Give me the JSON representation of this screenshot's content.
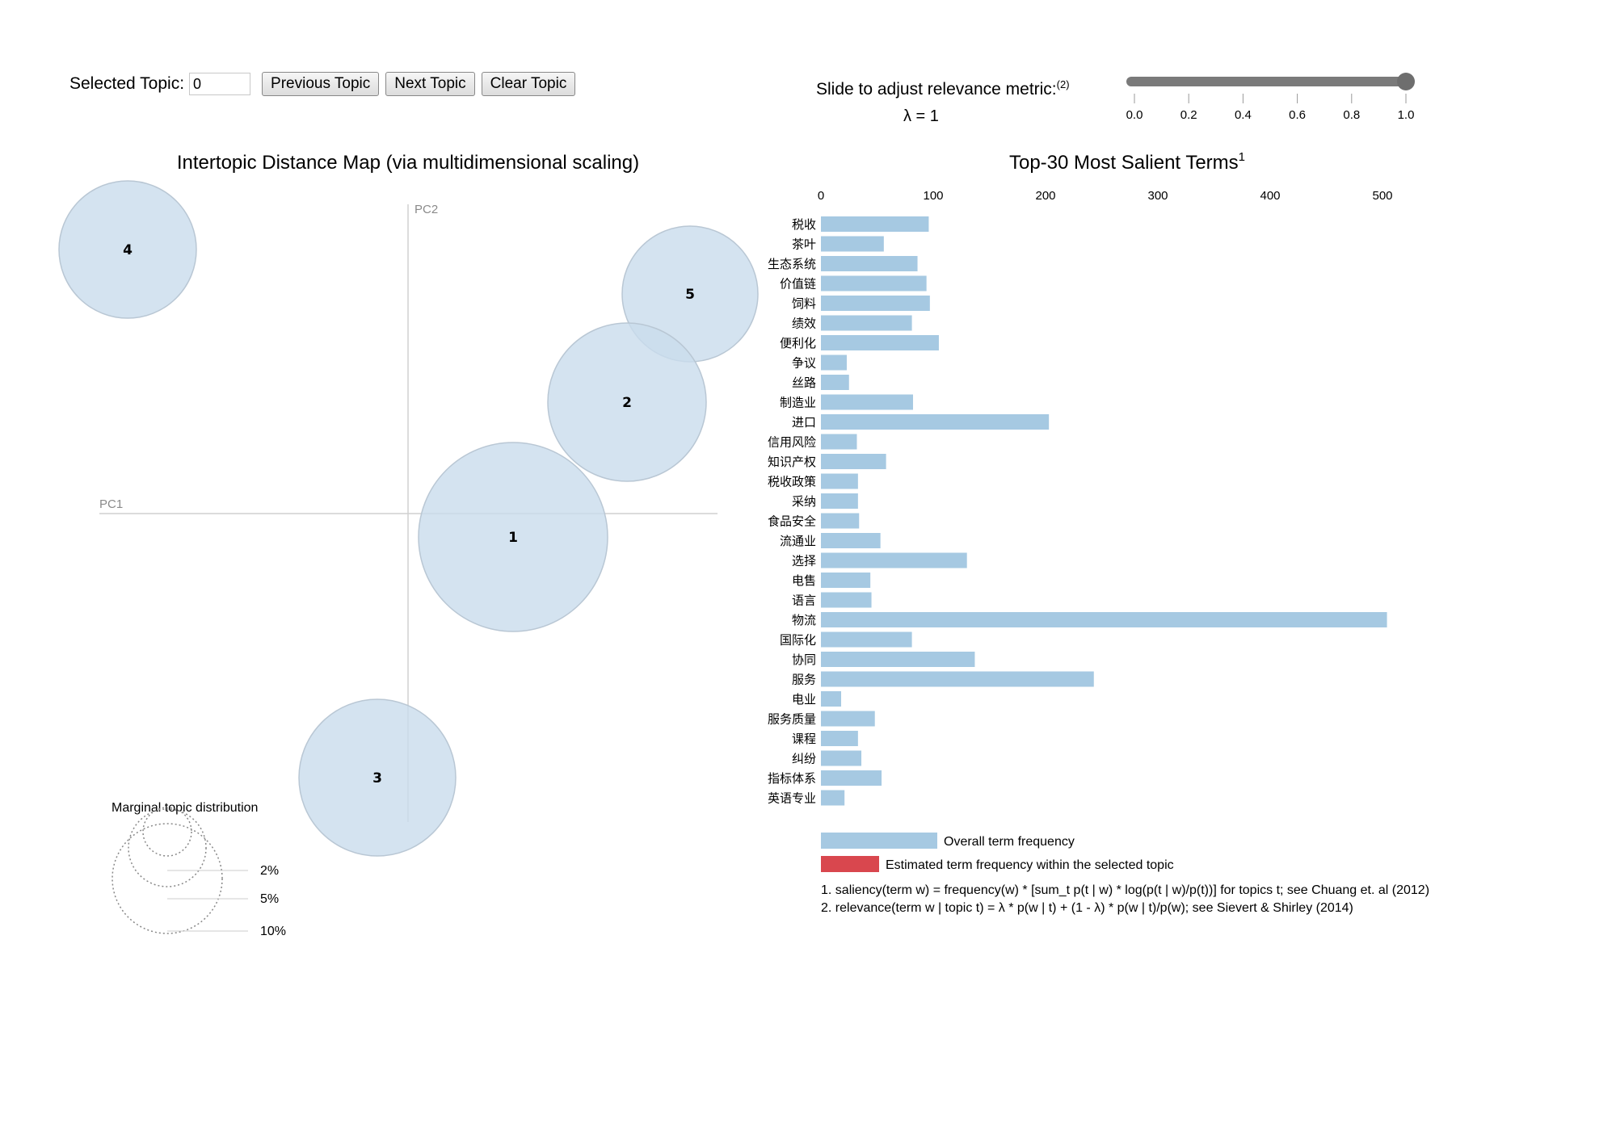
{
  "controls": {
    "selected_topic_label": "Selected Topic:",
    "selected_topic_value": "0",
    "previous_label": "Previous Topic",
    "next_label": "Next Topic",
    "clear_label": "Clear Topic"
  },
  "slider": {
    "label": "Slide to adjust relevance metric:",
    "label_note": "(2)",
    "lambda_text": "λ = 1",
    "value": 1.0,
    "ticks": [
      "0.0",
      "0.2",
      "0.4",
      "0.6",
      "0.8",
      "1.0"
    ]
  },
  "map": {
    "title": "Intertopic Distance Map (via multidimensional scaling)",
    "pc1_label": "PC1",
    "pc2_label": "PC2",
    "topics": [
      {
        "id": "1",
        "label": "1"
      },
      {
        "id": "2",
        "label": "2"
      },
      {
        "id": "3",
        "label": "3"
      },
      {
        "id": "4",
        "label": "4"
      },
      {
        "id": "5",
        "label": "5"
      }
    ],
    "marginal": {
      "title": "Marginal topic distribution",
      "labels": [
        "2%",
        "5%",
        "10%"
      ]
    }
  },
  "colors": {
    "bubble": "#c9dcec",
    "bar_overall": "#a6c9e2",
    "bar_topic": "#d9474e",
    "axis": "#d0d0d0"
  },
  "chart_data": {
    "type": "bar",
    "title": "Top-30 Most Salient Terms",
    "title_note": "1",
    "xlim": [
      0,
      500
    ],
    "xticks": [
      "0",
      "100",
      "200",
      "300",
      "400",
      "500"
    ],
    "categories": [
      "税收",
      "茶叶",
      "生态系统",
      "价值链",
      "饲料",
      "绩效",
      "便利化",
      "争议",
      "丝路",
      "制造业",
      "进口",
      "信用风险",
      "知识产权",
      "税收政策",
      "采纳",
      "食品安全",
      "流通业",
      "选择",
      "电售",
      "语言",
      "物流",
      "国际化",
      "协同",
      "服务",
      "电业",
      "服务质量",
      "课程",
      "纠纷",
      "指标体系",
      "英语专业"
    ],
    "series": [
      {
        "name": "Overall term frequency",
        "values": [
          96,
          56,
          86,
          94,
          97,
          81,
          105,
          23,
          25,
          82,
          203,
          32,
          58,
          33,
          33,
          34,
          53,
          130,
          44,
          45,
          504,
          81,
          137,
          243,
          18,
          48,
          33,
          36,
          54,
          21
        ]
      }
    ],
    "legend": [
      {
        "label": "Overall term frequency"
      },
      {
        "label": "Estimated term frequency within the selected topic"
      }
    ],
    "notes": [
      "1. saliency(term w) = frequency(w) * [sum_t p(t | w) * log(p(t | w)/p(t))] for topics t; see Chuang et. al (2012)",
      "2. relevance(term w | topic t) = λ * p(w | t) + (1 - λ) * p(w | t)/p(w); see Sievert & Shirley (2014)"
    ]
  }
}
